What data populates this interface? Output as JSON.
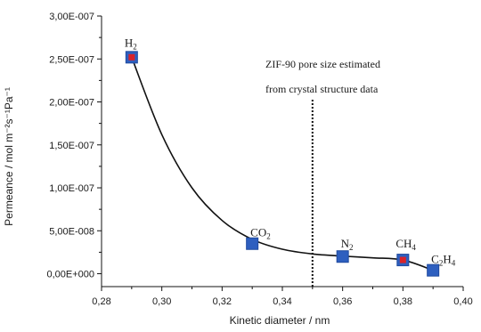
{
  "chart_data": {
    "type": "scatter",
    "xlabel": "Kinetic diameter / nm",
    "ylabel": "Permeance / mol m⁻²s⁻¹Pa⁻¹",
    "xlim": [
      0.28,
      0.4
    ],
    "ylim": [
      -1.5e-08,
      3e-07
    ],
    "x_ticks": [
      "0,28",
      "0,30",
      "0,32",
      "0,34",
      "0,36",
      "0,38",
      "0,40"
    ],
    "x_tick_values": [
      0.28,
      0.3,
      0.32,
      0.34,
      0.36,
      0.38,
      0.4
    ],
    "y_ticks": [
      "0,00E+000",
      "5,00E-008",
      "1,00E-007",
      "1,50E-007",
      "2,00E-007",
      "2,50E-007",
      "3,00E-007"
    ],
    "y_tick_values": [
      0,
      5e-08,
      1e-07,
      1.5e-07,
      2e-07,
      2.5e-07,
      3e-07
    ],
    "points": [
      {
        "gas": "H",
        "sub": "2",
        "suffix": "",
        "x": 0.29,
        "y": 2.52e-07,
        "red_center": true
      },
      {
        "gas": "CO",
        "sub": "2",
        "suffix": "",
        "x": 0.33,
        "y": 3.5e-08,
        "red_center": false
      },
      {
        "gas": "N",
        "sub": "2",
        "suffix": "",
        "x": 0.36,
        "y": 2e-08,
        "red_center": false
      },
      {
        "gas": "CH",
        "sub": "4",
        "suffix": "",
        "x": 0.38,
        "y": 1.6e-08,
        "red_center": true
      },
      {
        "gas": "C",
        "sub": "2",
        "suffix": "H₄",
        "x": 0.39,
        "y": 4e-09,
        "red_center": false
      }
    ],
    "trend_curve": [
      [
        0.29,
        2.52e-07
      ],
      [
        0.3,
        1.62e-07
      ],
      [
        0.31,
        1e-07
      ],
      [
        0.32,
        6.2e-08
      ],
      [
        0.33,
        4e-08
      ],
      [
        0.34,
        2.85e-08
      ],
      [
        0.35,
        2.3e-08
      ],
      [
        0.36,
        2.05e-08
      ],
      [
        0.37,
        1.85e-08
      ],
      [
        0.38,
        1.6e-08
      ],
      [
        0.39,
        4e-09
      ]
    ],
    "reference_line_x": 0.35,
    "annotation": [
      "ZIF-90 pore size estimated",
      "from crystal structure data"
    ],
    "colors": {
      "marker": "#2e5fbf",
      "marker_edge": "#1f4a9e",
      "center": "#d8232a",
      "line": "#111111"
    }
  }
}
